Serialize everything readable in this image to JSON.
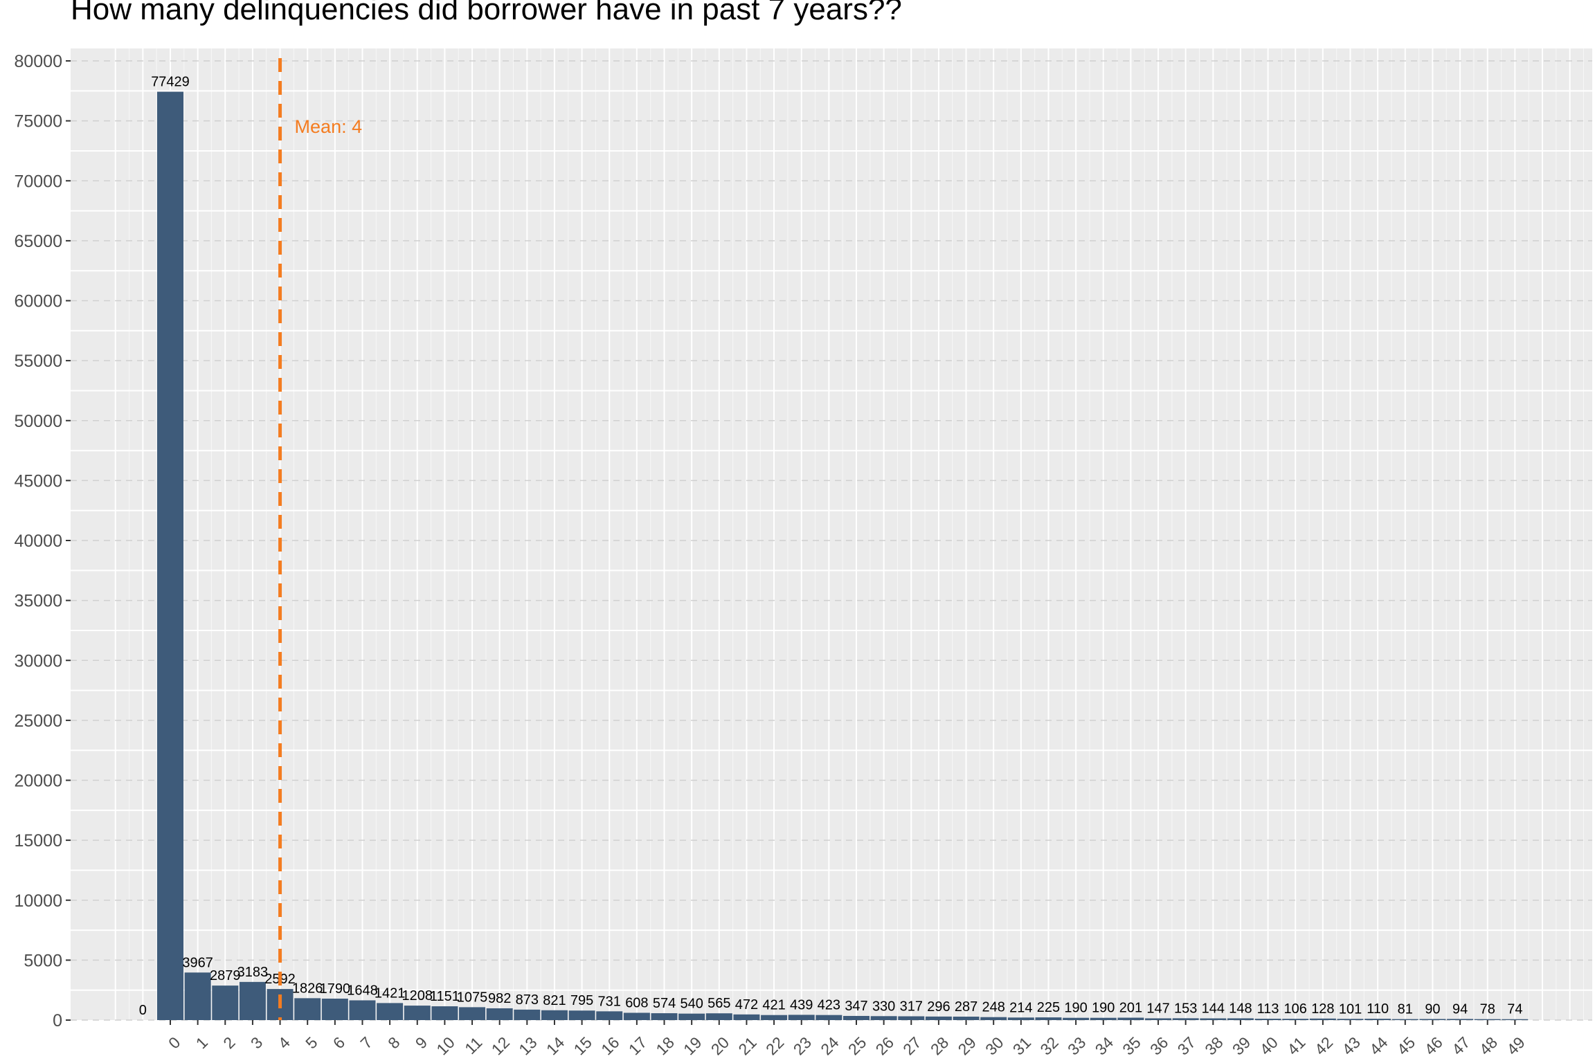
{
  "chart_data": {
    "type": "bar",
    "title": "How many delinquencies did borrower have in past 7 years??",
    "xlabel": "",
    "ylabel": "",
    "ylim": [
      0,
      80000
    ],
    "yticks": [
      0,
      5000,
      10000,
      15000,
      20000,
      25000,
      30000,
      35000,
      40000,
      45000,
      50000,
      55000,
      60000,
      65000,
      70000,
      75000,
      80000
    ],
    "categories": [
      "0",
      "1",
      "2",
      "3",
      "4",
      "5",
      "6",
      "7",
      "8",
      "9",
      "10",
      "11",
      "12",
      "13",
      "14",
      "15",
      "16",
      "17",
      "18",
      "19",
      "20",
      "21",
      "22",
      "23",
      "24",
      "25",
      "26",
      "27",
      "28",
      "29",
      "30",
      "31",
      "32",
      "33",
      "34",
      "35",
      "36",
      "37",
      "38",
      "39",
      "40",
      "41",
      "42",
      "43",
      "44",
      "45",
      "46",
      "47",
      "48",
      "49"
    ],
    "values": [
      77429,
      3967,
      2879,
      3183,
      2592,
      1826,
      1790,
      1648,
      1421,
      1208,
      1151,
      1075,
      982,
      873,
      821,
      795,
      731,
      608,
      574,
      540,
      565,
      472,
      421,
      439,
      423,
      347,
      330,
      317,
      296,
      287,
      248,
      214,
      225,
      190,
      190,
      201,
      147,
      153,
      144,
      148,
      113,
      106,
      128,
      101,
      110,
      81,
      90,
      94,
      78,
      74
    ],
    "extra_label": {
      "x": -1,
      "value": 0,
      "text": "0"
    },
    "mean": {
      "x": 4,
      "label": "Mean: 4",
      "color": "#f47c20"
    },
    "bar_color": "#3e5b7a",
    "panel_color": "#ebebeb",
    "grid": true,
    "legend": "none"
  }
}
